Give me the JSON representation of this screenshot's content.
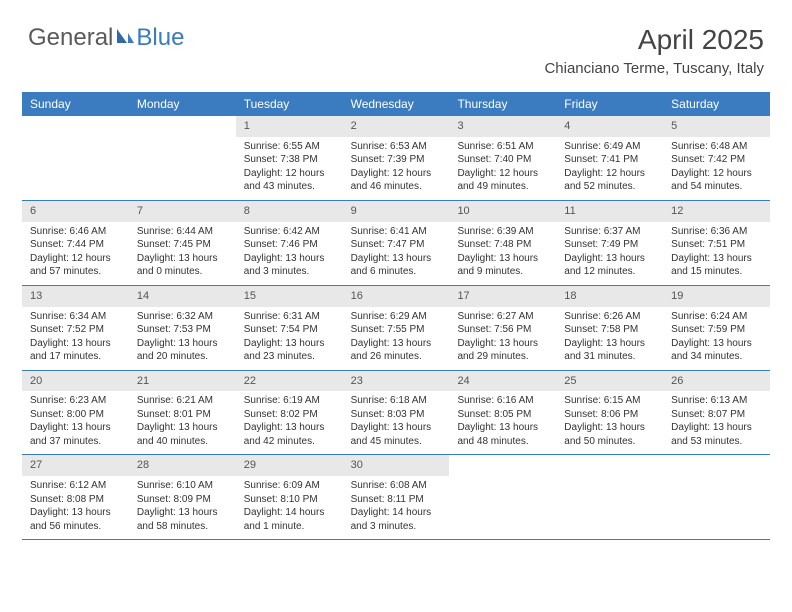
{
  "logo": {
    "text1": "General",
    "text2": "Blue"
  },
  "header": {
    "month": "April 2025",
    "location": "Chianciano Terme, Tuscany, Italy"
  },
  "colors": {
    "header_bg": "#3b7bbf",
    "header_text": "#ffffff",
    "daynum_bg": "#e8e8e8",
    "text": "#333333",
    "logo_general": "#5a5a5a",
    "logo_blue": "#3b7bbf",
    "week_border": "#3b7bbf"
  },
  "dayNames": [
    "Sunday",
    "Monday",
    "Tuesday",
    "Wednesday",
    "Thursday",
    "Friday",
    "Saturday"
  ],
  "weeks": [
    [
      null,
      null,
      {
        "n": "1",
        "sr": "6:55 AM",
        "ss": "7:38 PM",
        "dl": "12 hours and 43 minutes."
      },
      {
        "n": "2",
        "sr": "6:53 AM",
        "ss": "7:39 PM",
        "dl": "12 hours and 46 minutes."
      },
      {
        "n": "3",
        "sr": "6:51 AM",
        "ss": "7:40 PM",
        "dl": "12 hours and 49 minutes."
      },
      {
        "n": "4",
        "sr": "6:49 AM",
        "ss": "7:41 PM",
        "dl": "12 hours and 52 minutes."
      },
      {
        "n": "5",
        "sr": "6:48 AM",
        "ss": "7:42 PM",
        "dl": "12 hours and 54 minutes."
      }
    ],
    [
      {
        "n": "6",
        "sr": "6:46 AM",
        "ss": "7:44 PM",
        "dl": "12 hours and 57 minutes."
      },
      {
        "n": "7",
        "sr": "6:44 AM",
        "ss": "7:45 PM",
        "dl": "13 hours and 0 minutes."
      },
      {
        "n": "8",
        "sr": "6:42 AM",
        "ss": "7:46 PM",
        "dl": "13 hours and 3 minutes."
      },
      {
        "n": "9",
        "sr": "6:41 AM",
        "ss": "7:47 PM",
        "dl": "13 hours and 6 minutes."
      },
      {
        "n": "10",
        "sr": "6:39 AM",
        "ss": "7:48 PM",
        "dl": "13 hours and 9 minutes."
      },
      {
        "n": "11",
        "sr": "6:37 AM",
        "ss": "7:49 PM",
        "dl": "13 hours and 12 minutes."
      },
      {
        "n": "12",
        "sr": "6:36 AM",
        "ss": "7:51 PM",
        "dl": "13 hours and 15 minutes."
      }
    ],
    [
      {
        "n": "13",
        "sr": "6:34 AM",
        "ss": "7:52 PM",
        "dl": "13 hours and 17 minutes."
      },
      {
        "n": "14",
        "sr": "6:32 AM",
        "ss": "7:53 PM",
        "dl": "13 hours and 20 minutes."
      },
      {
        "n": "15",
        "sr": "6:31 AM",
        "ss": "7:54 PM",
        "dl": "13 hours and 23 minutes."
      },
      {
        "n": "16",
        "sr": "6:29 AM",
        "ss": "7:55 PM",
        "dl": "13 hours and 26 minutes."
      },
      {
        "n": "17",
        "sr": "6:27 AM",
        "ss": "7:56 PM",
        "dl": "13 hours and 29 minutes."
      },
      {
        "n": "18",
        "sr": "6:26 AM",
        "ss": "7:58 PM",
        "dl": "13 hours and 31 minutes."
      },
      {
        "n": "19",
        "sr": "6:24 AM",
        "ss": "7:59 PM",
        "dl": "13 hours and 34 minutes."
      }
    ],
    [
      {
        "n": "20",
        "sr": "6:23 AM",
        "ss": "8:00 PM",
        "dl": "13 hours and 37 minutes."
      },
      {
        "n": "21",
        "sr": "6:21 AM",
        "ss": "8:01 PM",
        "dl": "13 hours and 40 minutes."
      },
      {
        "n": "22",
        "sr": "6:19 AM",
        "ss": "8:02 PM",
        "dl": "13 hours and 42 minutes."
      },
      {
        "n": "23",
        "sr": "6:18 AM",
        "ss": "8:03 PM",
        "dl": "13 hours and 45 minutes."
      },
      {
        "n": "24",
        "sr": "6:16 AM",
        "ss": "8:05 PM",
        "dl": "13 hours and 48 minutes."
      },
      {
        "n": "25",
        "sr": "6:15 AM",
        "ss": "8:06 PM",
        "dl": "13 hours and 50 minutes."
      },
      {
        "n": "26",
        "sr": "6:13 AM",
        "ss": "8:07 PM",
        "dl": "13 hours and 53 minutes."
      }
    ],
    [
      {
        "n": "27",
        "sr": "6:12 AM",
        "ss": "8:08 PM",
        "dl": "13 hours and 56 minutes."
      },
      {
        "n": "28",
        "sr": "6:10 AM",
        "ss": "8:09 PM",
        "dl": "13 hours and 58 minutes."
      },
      {
        "n": "29",
        "sr": "6:09 AM",
        "ss": "8:10 PM",
        "dl": "14 hours and 1 minute."
      },
      {
        "n": "30",
        "sr": "6:08 AM",
        "ss": "8:11 PM",
        "dl": "14 hours and 3 minutes."
      },
      null,
      null,
      null
    ]
  ],
  "labels": {
    "sunrise": "Sunrise:",
    "sunset": "Sunset:",
    "daylight": "Daylight:"
  }
}
